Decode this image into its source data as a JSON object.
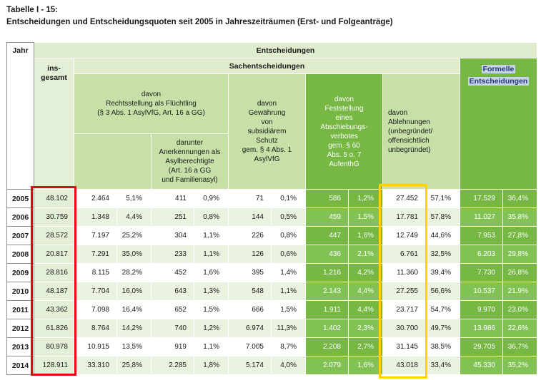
{
  "title": {
    "line1": "Tabelle I - 15:",
    "line2": "Entscheidungen und Entscheidungsquoten seit 2005 in Jahreszeiträumen (Erst- und Folgeanträge)"
  },
  "colors": {
    "pale_green": "#e3efd6",
    "band_green": "#e0ecce",
    "medium_green": "#c6e0a7",
    "strong_green": "#76b843",
    "strong_green_alt": "#82c254",
    "row_alt_green": "#eaf3e0",
    "formelle_text": "#1f3a76",
    "formelle_highlight": "#c9d2ec",
    "red_box": "#e30613",
    "yellow_box": "#ffd400"
  },
  "table": {
    "headers": {
      "jahr": "Jahr",
      "entscheidungen": "Entscheidungen",
      "insgesamt": "ins-\ngesamt",
      "sachentscheidungen": "Sachentscheidungen",
      "formelle_line1": "Formelle",
      "formelle_line2": "Entscheidungen",
      "rechtsstellung": "davon\nRechtsstellung als Flüchtling\n(§ 3 Abs. 1 AsylVfG, Art. 16 a GG)",
      "darunter": "darunter\nAnerkennungen als\nAsylberechtigte\n(Art. 16 a GG\nund Familienasyl)",
      "subsidiaer": "davon\nGewährung\nvon\nsubsidiärem\nSchutz\ngem. § 4 Abs. 1\nAsylVfG",
      "abschiebung": "davon\nFeststellung\neines\nAbschiebungs-\nverbotes\ngem. § 60\nAbs. 5 o. 7\nAufenthG",
      "ablehnungen": "davon\nAblehnungen\n(unbegründet/\noffensichtlich\nunbegründet)"
    },
    "column_keys": [
      "rechtsstellung-count",
      "rechtsstellung-pct",
      "anerkennung-count",
      "anerkennung-pct",
      "subsidiaer-count",
      "subsidiaer-pct",
      "abschiebungsverbot-count",
      "abschiebungsverbot-pct",
      "ablehnung-count",
      "ablehnung-pct",
      "formelle-count",
      "formelle-pct"
    ],
    "rows": [
      {
        "year": "2005",
        "cells": [
          "48.102",
          "2.464",
          "5,1%",
          "411",
          "0,9%",
          "71",
          "0,1%",
          "586",
          "1,2%",
          "27.452",
          "57,1%",
          "17.529",
          "36,4%"
        ]
      },
      {
        "year": "2006",
        "cells": [
          "30.759",
          "1.348",
          "4,4%",
          "251",
          "0,8%",
          "144",
          "0,5%",
          "459",
          "1,5%",
          "17.781",
          "57,8%",
          "11.027",
          "35,8%"
        ]
      },
      {
        "year": "2007",
        "cells": [
          "28.572",
          "7.197",
          "25,2%",
          "304",
          "1,1%",
          "226",
          "0,8%",
          "447",
          "1,6%",
          "12.749",
          "44,6%",
          "7.953",
          "27,8%"
        ]
      },
      {
        "year": "2008",
        "cells": [
          "20.817",
          "7.291",
          "35,0%",
          "233",
          "1,1%",
          "126",
          "0,6%",
          "436",
          "2,1%",
          "6.761",
          "32,5%",
          "6.203",
          "29,8%"
        ]
      },
      {
        "year": "2009",
        "cells": [
          "28.816",
          "8.115",
          "28,2%",
          "452",
          "1,6%",
          "395",
          "1,4%",
          "1.216",
          "4,2%",
          "11.360",
          "39,4%",
          "7.730",
          "26,8%"
        ]
      },
      {
        "year": "2010",
        "cells": [
          "48.187",
          "7.704",
          "16,0%",
          "643",
          "1,3%",
          "548",
          "1,1%",
          "2.143",
          "4,4%",
          "27.255",
          "56,6%",
          "10.537",
          "21,9%"
        ]
      },
      {
        "year": "2011",
        "cells": [
          "43.362",
          "7.098",
          "16,4%",
          "652",
          "1,5%",
          "666",
          "1,5%",
          "1.911",
          "4,4%",
          "23.717",
          "54,7%",
          "9.970",
          "23,0%"
        ]
      },
      {
        "year": "2012",
        "cells": [
          "61.826",
          "8.764",
          "14,2%",
          "740",
          "1,2%",
          "6.974",
          "11,3%",
          "1.402",
          "2,3%",
          "30.700",
          "49,7%",
          "13.986",
          "22,6%"
        ]
      },
      {
        "year": "2013",
        "cells": [
          "80.978",
          "10.915",
          "13,5%",
          "919",
          "1,1%",
          "7.005",
          "8,7%",
          "2.208",
          "2,7%",
          "31.145",
          "38,5%",
          "29.705",
          "36,7%"
        ]
      },
      {
        "year": "2014",
        "cells": [
          "128.911",
          "33.310",
          "25,8%",
          "2.285",
          "1,8%",
          "5.174",
          "4,0%",
          "2.079",
          "1,6%",
          "43.018",
          "33,4%",
          "45.330",
          "35,2%"
        ]
      }
    ]
  },
  "annotations": {
    "red_box_target": "insgesamt-column",
    "yellow_box_target": "ablehnung-count-column"
  }
}
